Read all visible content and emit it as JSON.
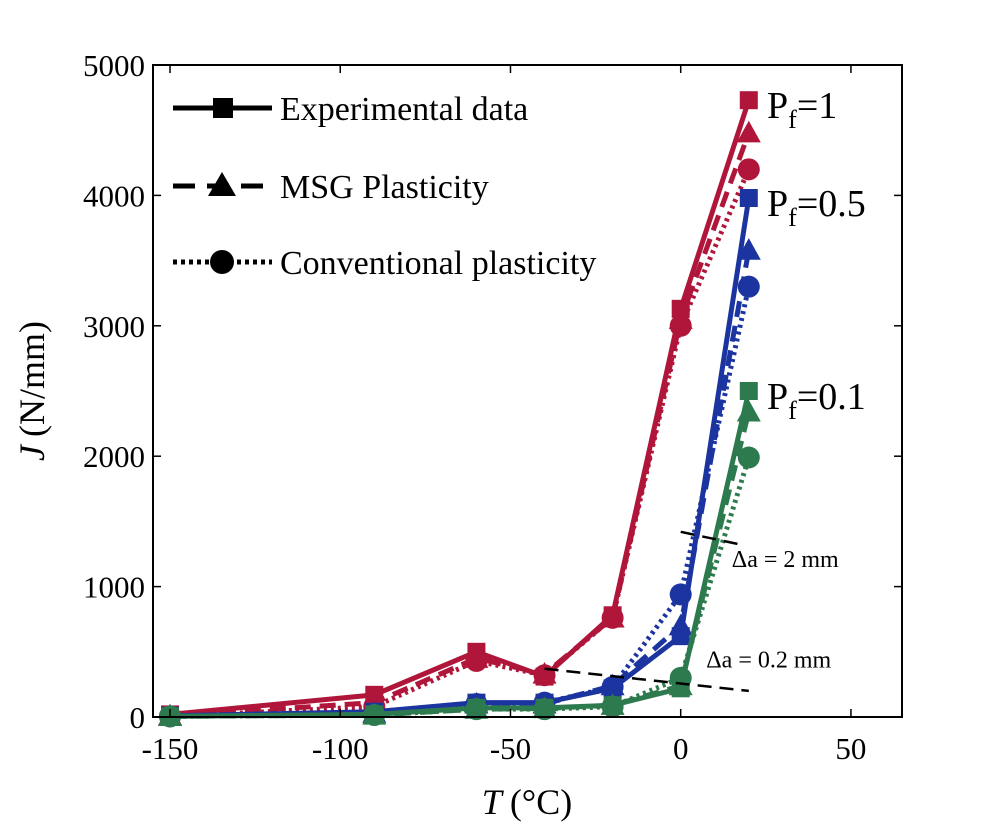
{
  "chart_data": {
    "type": "line",
    "xlabel_var": "T",
    "xlabel_unit": "(°C)",
    "ylabel_var": "J",
    "ylabel_unit": "(N/mm)",
    "xlim": [
      -155,
      65
    ],
    "ylim": [
      0,
      5000
    ],
    "xticks": [
      -150,
      -100,
      -50,
      0,
      50
    ],
    "yticks": [
      0,
      1000,
      2000,
      3000,
      4000,
      5000
    ],
    "grid": false,
    "legend": {
      "placement": "top-left",
      "entries": [
        {
          "label": "Experimental data",
          "style": "solid",
          "marker": "square"
        },
        {
          "label": "MSG Plasticity",
          "style": "dashed",
          "marker": "triangle"
        },
        {
          "label": "Conventional plasticity",
          "style": "dotted",
          "marker": "circle"
        }
      ]
    },
    "x": [
      -150,
      -90,
      -60,
      -40,
      -20,
      0,
      20
    ],
    "groups": [
      {
        "name": "Pf=1",
        "label_main": "P",
        "label_sub": "f",
        "label_rest": "=1",
        "color": "#b0153a",
        "series": [
          {
            "kind": "experimental",
            "values": [
              20,
              170,
              500,
              310,
              780,
              3130,
              4730
            ]
          },
          {
            "kind": "msg",
            "values": [
              10,
              110,
              450,
              330,
              760,
              3050,
              4480
            ]
          },
          {
            "kind": "conventional",
            "values": [
              5,
              80,
              430,
              320,
              760,
              3000,
              4200
            ]
          }
        ]
      },
      {
        "name": "Pf=0.5",
        "label_main": "P",
        "label_sub": "f",
        "label_rest": "=0.5",
        "color": "#1c34a0",
        "series": [
          {
            "kind": "experimental",
            "values": [
              10,
              40,
              110,
              110,
              220,
              620,
              3980
            ]
          },
          {
            "kind": "msg",
            "values": [
              5,
              30,
              100,
              100,
              240,
              700,
              3580
            ]
          },
          {
            "kind": "conventional",
            "values": [
              5,
              25,
              100,
              110,
              230,
              940,
              3300
            ]
          }
        ]
      },
      {
        "name": "Pf=0.1",
        "label_main": "P",
        "label_sub": "f",
        "label_rest": "=0.1",
        "color": "#2e7a4f",
        "series": [
          {
            "kind": "experimental",
            "values": [
              5,
              20,
              70,
              70,
              90,
              220,
              2500
            ]
          },
          {
            "kind": "msg",
            "values": [
              5,
              15,
              60,
              65,
              90,
              240,
              2340
            ]
          },
          {
            "kind": "conventional",
            "values": [
              5,
              15,
              60,
              60,
              80,
              300,
              1990
            ]
          }
        ]
      }
    ],
    "annotations": [
      {
        "label": "Δa = 2 mm",
        "line": [
          [
            0,
            1420
          ],
          [
            18,
            1320
          ]
        ],
        "text_at": [
          15,
          1150
        ]
      },
      {
        "label": "Δa = 0.2 mm",
        "line": [
          [
            -40,
            370
          ],
          [
            20,
            200
          ]
        ],
        "text_at": [
          7.5,
          380
        ]
      }
    ]
  }
}
